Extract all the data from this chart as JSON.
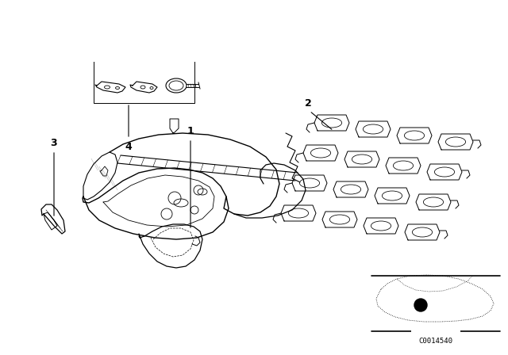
{
  "bg_color": "#ffffff",
  "line_color": "#000000",
  "catalog_number": "C0014540",
  "fig_width": 6.4,
  "fig_height": 4.48,
  "dpi": 100,
  "xlim": [
    0,
    640
  ],
  "ylim": [
    0,
    448
  ]
}
